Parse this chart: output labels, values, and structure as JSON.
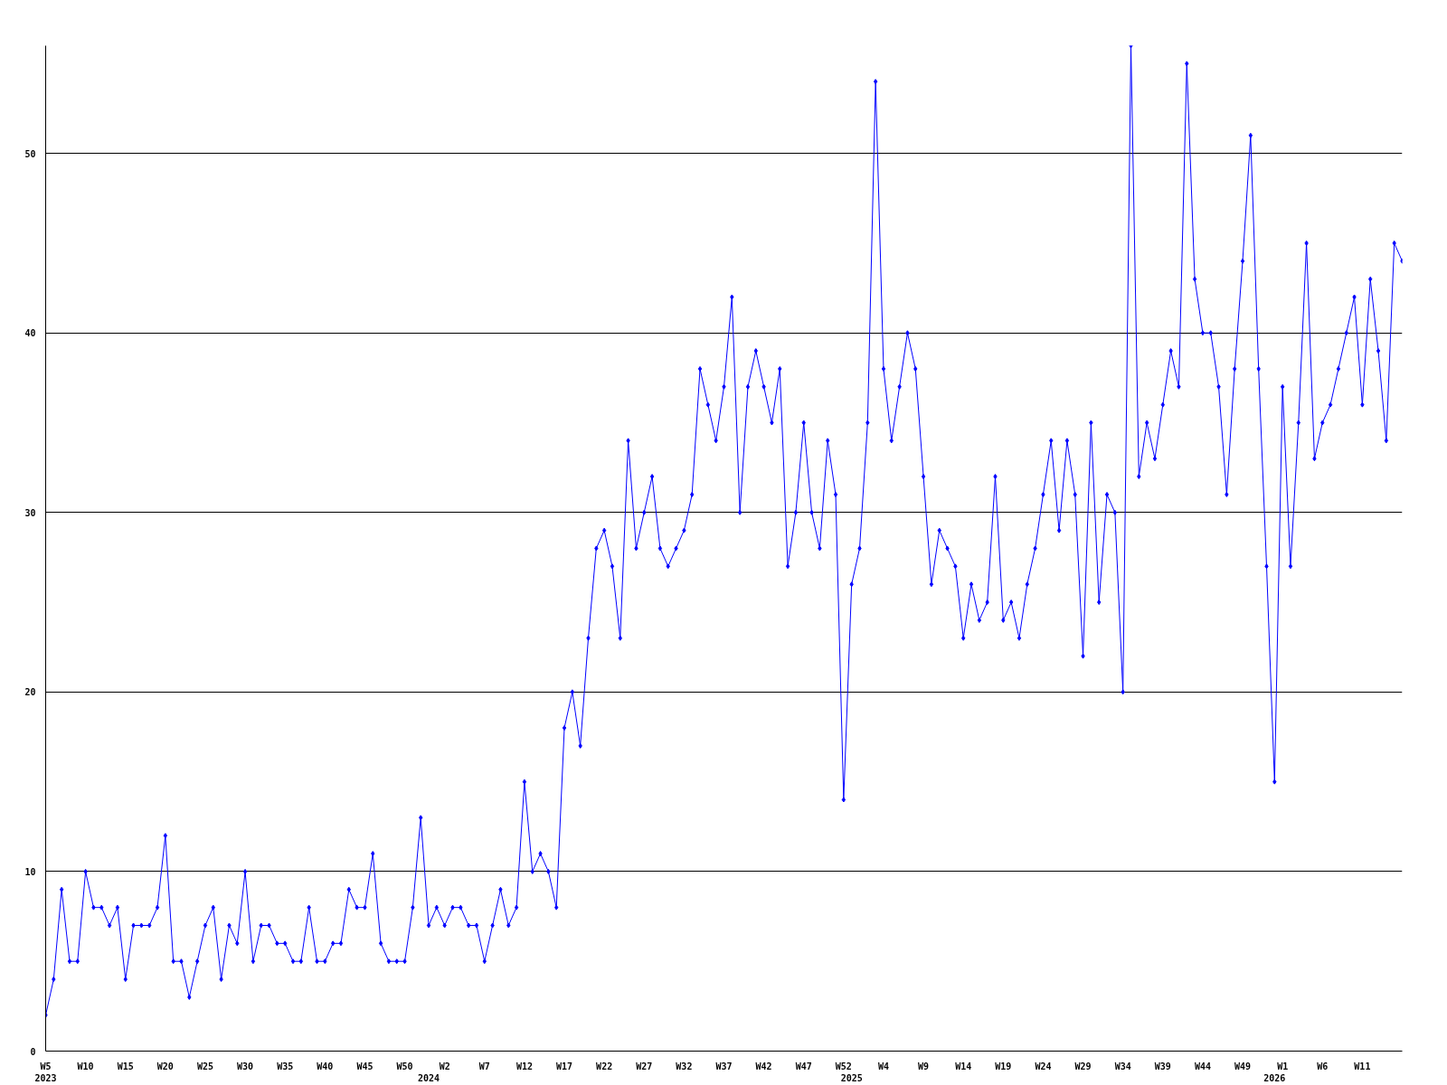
{
  "chart_data": {
    "type": "line",
    "categories": [
      "W5\n2023",
      null,
      null,
      null,
      null,
      "W10",
      null,
      null,
      null,
      null,
      "W15",
      null,
      null,
      null,
      null,
      "W20",
      null,
      null,
      null,
      null,
      "W25",
      null,
      null,
      null,
      null,
      "W30",
      null,
      null,
      null,
      null,
      "W35",
      null,
      null,
      null,
      null,
      "W40",
      null,
      null,
      null,
      null,
      "W45",
      null,
      null,
      null,
      null,
      "W50",
      null,
      null,
      "\n2024",
      null,
      "W2",
      null,
      null,
      null,
      null,
      "W7",
      null,
      null,
      null,
      null,
      "W12",
      null,
      null,
      null,
      null,
      "W17",
      null,
      null,
      null,
      null,
      "W22",
      null,
      null,
      null,
      null,
      "W27",
      null,
      null,
      null,
      null,
      "W32",
      null,
      null,
      null,
      null,
      "W37",
      null,
      null,
      null,
      null,
      "W42",
      null,
      null,
      null,
      null,
      "W47",
      null,
      null,
      null,
      null,
      "W52",
      "\n2025",
      null,
      null,
      null,
      "W4",
      null,
      null,
      null,
      null,
      "W9",
      null,
      null,
      null,
      null,
      "W14",
      null,
      null,
      null,
      null,
      "W19",
      null,
      null,
      null,
      null,
      "W24",
      null,
      null,
      null,
      null,
      "W29",
      null,
      null,
      null,
      null,
      "W34",
      null,
      null,
      null,
      null,
      "W39",
      null,
      null,
      null,
      null,
      "W44",
      null,
      null,
      null,
      null,
      "W49",
      null,
      null,
      null,
      "\n2026",
      "W1",
      null,
      null,
      null,
      null,
      "W6",
      null,
      null,
      null,
      null,
      "W11",
      null,
      null,
      null,
      null,
      null
    ],
    "series": [
      {
        "color": "#0000ff",
        "values": [
          2,
          4,
          9,
          5,
          5,
          10,
          8,
          8,
          7,
          8,
          4,
          7,
          7,
          7,
          8,
          12,
          5,
          5,
          3,
          5,
          7,
          8,
          4,
          7,
          6,
          10,
          5,
          7,
          7,
          6,
          6,
          5,
          5,
          8,
          5,
          5,
          6,
          6,
          9,
          8,
          8,
          11,
          6,
          5,
          5,
          5,
          8,
          13,
          7,
          8,
          7,
          8,
          8,
          7,
          7,
          5,
          7,
          9,
          7,
          8,
          15,
          10,
          11,
          10,
          8,
          18,
          20,
          17,
          23,
          28,
          29,
          27,
          23,
          34,
          28,
          30,
          32,
          28,
          27,
          28,
          29,
          31,
          38,
          36,
          34,
          37,
          42,
          30,
          37,
          39,
          37,
          35,
          38,
          27,
          30,
          35,
          30,
          28,
          34,
          31,
          14,
          26,
          28,
          35,
          54,
          38,
          34,
          37,
          40,
          38,
          32,
          26,
          29,
          28,
          27,
          23,
          26,
          24,
          25,
          32,
          24,
          25,
          23,
          26,
          28,
          31,
          34,
          29,
          34,
          31,
          22,
          35,
          25,
          31,
          30,
          20,
          56,
          32,
          35,
          33,
          36,
          39,
          37,
          55,
          43,
          40,
          40,
          37,
          31,
          38,
          44,
          51,
          38,
          27,
          15,
          37,
          27,
          35,
          45,
          33,
          35,
          36,
          38,
          40,
          42,
          36,
          43,
          39,
          34,
          45,
          44
        ]
      }
    ],
    "ylim": [
      0,
      56
    ],
    "yticks": [
      0,
      10,
      20,
      30,
      40,
      50
    ],
    "grid": "y",
    "marker": "diamond",
    "line_style": "solid"
  }
}
